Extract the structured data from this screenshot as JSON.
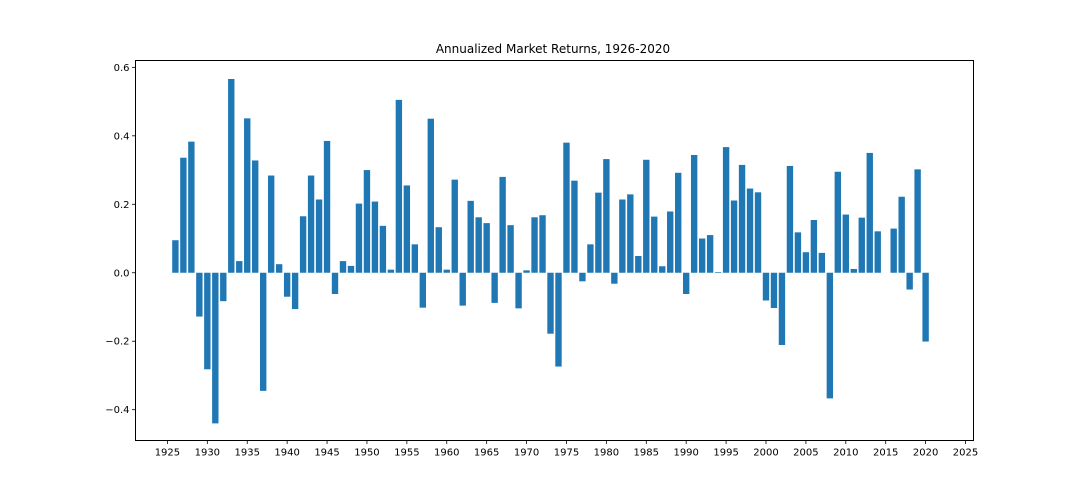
{
  "chart_data": {
    "type": "bar",
    "title": "Annualized Market Returns, 1926-2020",
    "xlabel": "",
    "ylabel": "",
    "xlim": [
      1921,
      2026
    ],
    "ylim": [
      -0.49,
      0.62
    ],
    "grid": false,
    "legend": "none",
    "bar_color": "#1f77b4",
    "x_ticks": [
      1925,
      1930,
      1935,
      1940,
      1945,
      1950,
      1955,
      1960,
      1965,
      1970,
      1975,
      1980,
      1985,
      1990,
      1995,
      2000,
      2005,
      2010,
      2015,
      2020,
      2025
    ],
    "x_tick_labels": [
      "1925",
      "1930",
      "1935",
      "1940",
      "1945",
      "1950",
      "1955",
      "1960",
      "1965",
      "1970",
      "1975",
      "1980",
      "1985",
      "1990",
      "1995",
      "2000",
      "2005",
      "2010",
      "2015",
      "2020",
      "2025"
    ],
    "y_ticks": [
      -0.4,
      -0.2,
      0.0,
      0.2,
      0.4,
      0.6
    ],
    "y_tick_labels": [
      "−0.4",
      "−0.2",
      "0.0",
      "0.2",
      "0.4",
      "0.6"
    ],
    "x": [
      1926,
      1927,
      1928,
      1929,
      1930,
      1931,
      1932,
      1933,
      1934,
      1935,
      1936,
      1937,
      1938,
      1939,
      1940,
      1941,
      1942,
      1943,
      1944,
      1945,
      1946,
      1947,
      1948,
      1949,
      1950,
      1951,
      1952,
      1953,
      1954,
      1955,
      1956,
      1957,
      1958,
      1959,
      1960,
      1961,
      1962,
      1963,
      1964,
      1965,
      1966,
      1967,
      1968,
      1969,
      1970,
      1971,
      1972,
      1973,
      1974,
      1975,
      1976,
      1977,
      1978,
      1979,
      1980,
      1981,
      1982,
      1983,
      1984,
      1985,
      1986,
      1987,
      1988,
      1989,
      1990,
      1991,
      1992,
      1993,
      1994,
      1995,
      1996,
      1997,
      1998,
      1999,
      2000,
      2001,
      2002,
      2003,
      2004,
      2005,
      2006,
      2007,
      2008,
      2009,
      2010,
      2011,
      2012,
      2013,
      2014,
      2015,
      2016,
      2017,
      2018,
      2019,
      2020
    ],
    "values": [
      0.095,
      0.336,
      0.383,
      -0.128,
      -0.282,
      -0.44,
      -0.083,
      0.566,
      0.034,
      0.451,
      0.328,
      -0.345,
      0.284,
      0.025,
      -0.07,
      -0.106,
      0.165,
      0.284,
      0.214,
      0.385,
      -0.062,
      0.034,
      0.02,
      0.202,
      0.3,
      0.208,
      0.137,
      0.009,
      0.505,
      0.255,
      0.083,
      -0.102,
      0.45,
      0.133,
      0.009,
      0.272,
      -0.096,
      0.21,
      0.162,
      0.145,
      -0.088,
      0.28,
      0.139,
      -0.104,
      0.007,
      0.162,
      0.168,
      -0.178,
      -0.274,
      0.38,
      0.269,
      -0.025,
      0.083,
      0.234,
      0.332,
      -0.032,
      0.214,
      0.229,
      0.049,
      0.33,
      0.164,
      0.019,
      0.179,
      0.292,
      -0.062,
      0.344,
      0.1,
      0.11,
      0.002,
      0.367,
      0.211,
      0.315,
      0.246,
      0.235,
      -0.081,
      -0.103,
      -0.211,
      0.312,
      0.118,
      0.06,
      0.154,
      0.058,
      -0.367,
      0.295,
      0.17,
      0.011,
      0.161,
      0.35,
      0.121,
      0.0,
      0.129,
      0.222,
      -0.049,
      0.302,
      -0.201
    ]
  }
}
